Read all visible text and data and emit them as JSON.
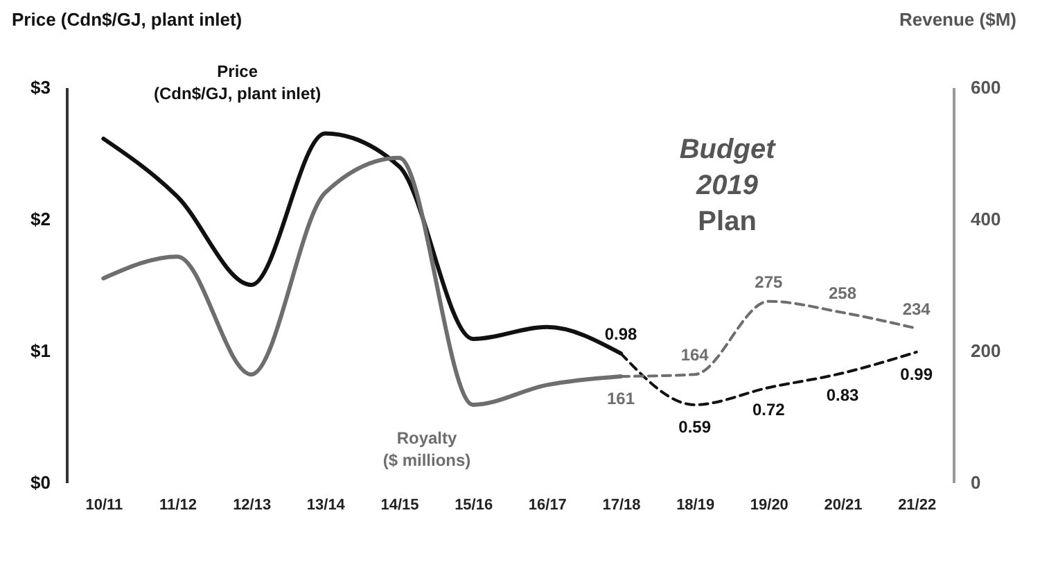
{
  "chart_data": {
    "type": "line",
    "ylabel": "Price (Cdn$/GJ, plant inlet)",
    "y2label": "Revenue ($M)",
    "categories": [
      "10/11",
      "11/12",
      "12/13",
      "13/14",
      "14/15",
      "15/16",
      "16/17",
      "17/18",
      "18/19",
      "19/20",
      "20/21",
      "21/22"
    ],
    "series": [
      {
        "name": "Price\n(Cdn$/GJ, plant inlet)",
        "color": "#111111",
        "line_style": "solid",
        "values": [
          2.61,
          2.17,
          1.5,
          2.65,
          2.4,
          1.09,
          1.18,
          0.98,
          null,
          null,
          null,
          null
        ],
        "value_labels": [
          null,
          null,
          null,
          null,
          null,
          null,
          null,
          "0.98",
          null,
          null,
          null,
          null
        ]
      },
      {
        "color": "#111111",
        "line_style": "dashed",
        "values": [
          null,
          null,
          null,
          null,
          null,
          null,
          null,
          0.98,
          0.59,
          0.72,
          0.83,
          0.99
        ],
        "value_labels": [
          null,
          null,
          null,
          null,
          null,
          null,
          null,
          null,
          "0.59",
          "0.72",
          "0.83",
          "0.99"
        ]
      },
      {
        "name": "Royalty\n($ millions)",
        "color": "#6e6e6e",
        "line_style": "solid",
        "axis": "y2",
        "values": [
          310,
          343,
          164,
          440,
          493,
          118,
          148,
          161,
          null,
          null,
          null,
          null
        ],
        "value_labels": [
          null,
          null,
          null,
          null,
          null,
          null,
          null,
          "161",
          null,
          null,
          null,
          null
        ]
      },
      {
        "color": "#6e6e6e",
        "line_style": "dashed",
        "axis": "y2",
        "values": [
          null,
          null,
          null,
          null,
          null,
          null,
          null,
          161,
          164,
          275,
          258,
          234
        ],
        "value_labels": [
          null,
          null,
          null,
          null,
          null,
          null,
          null,
          null,
          "164",
          "275",
          "258",
          "234"
        ]
      }
    ],
    "ylim": [
      0,
      3
    ],
    "yticks": [
      {
        "value": 0,
        "label": "$0"
      },
      {
        "value": 1,
        "label": "$1"
      },
      {
        "value": 2,
        "label": "$2"
      },
      {
        "value": 3,
        "label": "$3"
      }
    ],
    "y2lim": [
      0,
      600
    ],
    "y2ticks": [
      0,
      200,
      400,
      600
    ],
    "annotations": [
      "Budget 2019 Plan"
    ],
    "grid": false
  }
}
